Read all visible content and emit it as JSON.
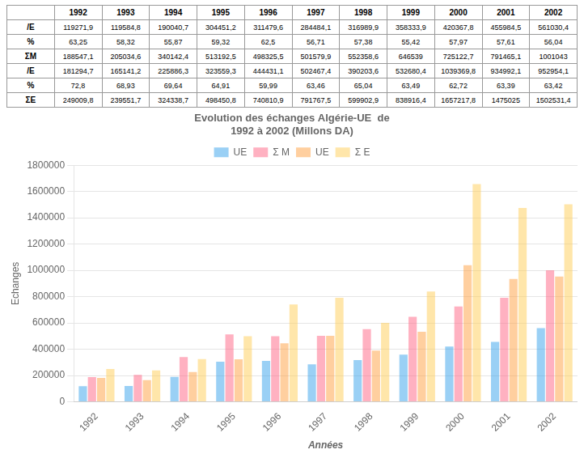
{
  "chart_data": {
    "type": "bar",
    "title": [
      "Evolution des échanges Algérie-UE  de",
      "1992 à 2002 (Millons DA)"
    ],
    "ylabel": "Echanges",
    "xlabel": "Années",
    "categories": [
      "1992",
      "1993",
      "1994",
      "1995",
      "1996",
      "1997",
      "1998",
      "1999",
      "2000",
      "2001",
      "2002"
    ],
    "series": [
      {
        "name": "UE",
        "values": [
          119271.9,
          119584.8,
          190040.7,
          304451.2,
          311479.6,
          284484.1,
          316989.9,
          358333.9,
          420367.8,
          455984.5,
          561030.4
        ]
      },
      {
        "name": "Σ M",
        "values": [
          188547.1,
          205034.6,
          340142.4,
          513192.5,
          498325.5,
          501579.9,
          552358.6,
          646539.0,
          725122.7,
          791465.1,
          1001043.0
        ]
      },
      {
        "name": "UE",
        "values": [
          181294.7,
          165141.2,
          225886.3,
          323559.3,
          444431.1,
          502467.4,
          390203.6,
          532680.4,
          1039369.8,
          934992.1,
          952954.1
        ]
      },
      {
        "name": "Σ E",
        "values": [
          249009.8,
          239551.7,
          324338.7,
          498450.8,
          740810.9,
          791767.5,
          599902.9,
          838916.4,
          1657217.8,
          1475025.0,
          1502531.4
        ]
      }
    ],
    "ylim": [
      0,
      1800000
    ],
    "yticks": [
      0,
      200000,
      400000,
      600000,
      800000,
      1000000,
      1200000,
      1400000,
      1600000,
      1800000
    ],
    "grid": true,
    "legend": "top",
    "table": {
      "columns": [
        "1992",
        "1993",
        "1994",
        "1995",
        "1996",
        "1997",
        "1998",
        "1999",
        "2000",
        "2001",
        "2002"
      ],
      "rows": [
        {
          "label": "/E",
          "cells": [
            "119271,9",
            "119584,8",
            "190040,7",
            "304451,2",
            "311479,6",
            "284484,1",
            "316989,9",
            "358333,9",
            "420367,8",
            "455984,5",
            "561030,4"
          ]
        },
        {
          "label": "%",
          "cells": [
            "63,25",
            "58,32",
            "55,87",
            "59,32",
            "62,5",
            "56,71",
            "57,38",
            "55,42",
            "57,97",
            "57,61",
            "56,04"
          ]
        },
        {
          "label": "ΣM",
          "cells": [
            "188547,1",
            "205034,6",
            "340142,4",
            "513192,5",
            "498325,5",
            "501579,9",
            "552358,6",
            "646539",
            "725122,7",
            "791465,1",
            "1001043"
          ]
        },
        {
          "label": "/E",
          "cells": [
            "181294,7",
            "165141,2",
            "225886,3",
            "323559,3",
            "444431,1",
            "502467,4",
            "390203,6",
            "532680,4",
            "1039369,8",
            "934992,1",
            "952954,1"
          ]
        },
        {
          "label": "%",
          "cells": [
            "72,8",
            "68,93",
            "69,64",
            "64,91",
            "59,99",
            "63,46",
            "65,04",
            "63,49",
            "62,72",
            "63,39",
            "63,42"
          ]
        },
        {
          "label": "ΣE",
          "cells": [
            "249009,8",
            "239551,7",
            "324338,7",
            "498450,8",
            "740810,9",
            "791767,5",
            "599902,9",
            "838916,4",
            "1657217,8",
            "1475025",
            "1502531,4"
          ]
        }
      ]
    }
  }
}
